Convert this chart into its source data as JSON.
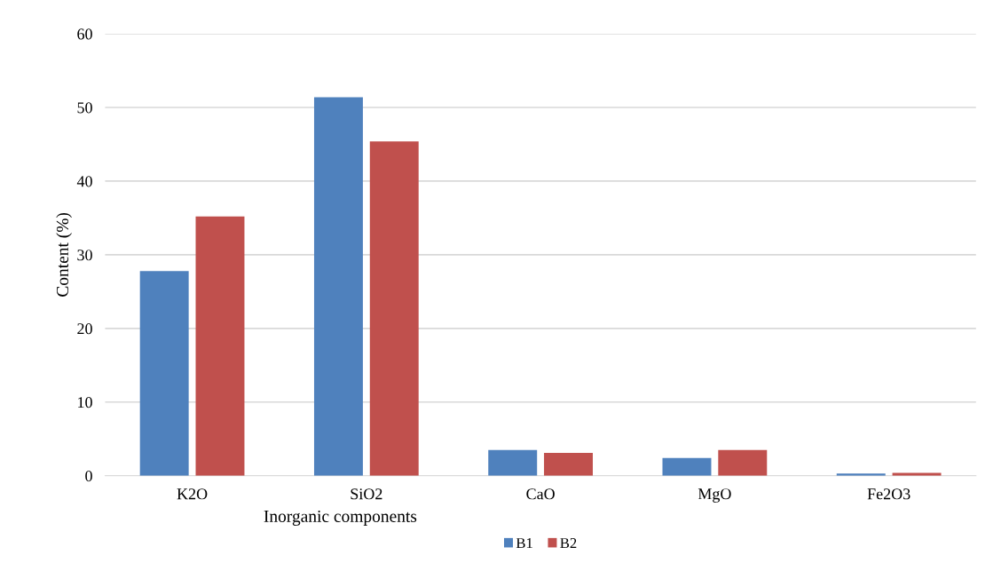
{
  "chart_data": {
    "type": "bar",
    "xlabel": "Inorganic components",
    "ylabel": "Content (%)",
    "categories": [
      "K2O",
      "SiO2",
      "CaO",
      "MgO",
      "Fe2O3"
    ],
    "series": [
      {
        "name": "B1",
        "color": "#4f81bd",
        "values": [
          27.8,
          51.4,
          3.5,
          2.4,
          0.3
        ]
      },
      {
        "name": "B2",
        "color": "#c0504d",
        "values": [
          35.2,
          45.4,
          3.1,
          3.5,
          0.4
        ]
      }
    ],
    "ylim": [
      0,
      60
    ],
    "yticks": [
      0,
      10,
      20,
      30,
      40,
      50,
      60
    ],
    "grid": "y",
    "legend": "bottom"
  }
}
